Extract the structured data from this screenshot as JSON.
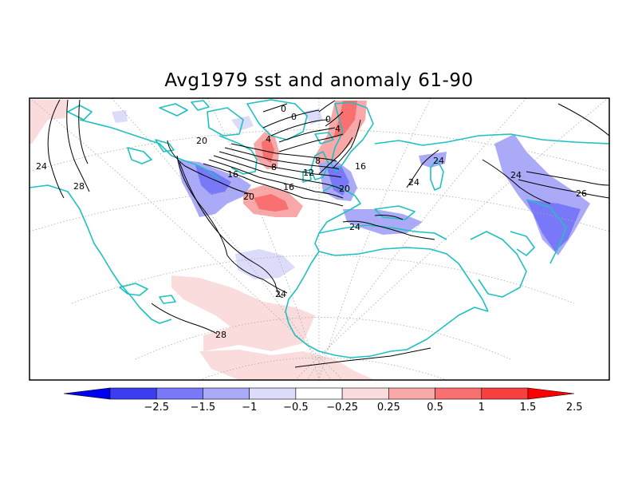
{
  "title": "Avg1979 sst and anomaly 61-90",
  "colors": {
    "coast": "#20c0c0",
    "contour": "#000000",
    "grid": "#aaaaaa",
    "neg_strong": "#3c3cf0",
    "neg_mid": "#7878f8",
    "neg_light": "#aaaaf8",
    "neg_faint": "#dcdcfa",
    "pos_faint": "#fbdcdc",
    "pos_light": "#f8a8a8",
    "pos_mid": "#f87070",
    "pos_strong": "#f84040"
  },
  "colorbar": {
    "labels": [
      "-2.5",
      "-1.5",
      "-1",
      "-0.5",
      "-0.25",
      "0.25",
      "0.5",
      "1",
      "1.5",
      "2.5"
    ],
    "colors": [
      "#0000f0",
      "#3c3cf0",
      "#7878f8",
      "#aaaaf8",
      "#dcdcfa",
      "#ffffff",
      "#fbdcdc",
      "#f8a8a8",
      "#f87070",
      "#f84040",
      "#ff0000"
    ]
  },
  "contour_labels": [
    "24",
    "28",
    "20",
    "0",
    "0",
    "4",
    "0",
    "4",
    "8",
    "12",
    "16",
    "20",
    "16",
    "8",
    "16",
    "20",
    "24",
    "24",
    "24",
    "24",
    "28",
    "24",
    "26"
  ]
}
